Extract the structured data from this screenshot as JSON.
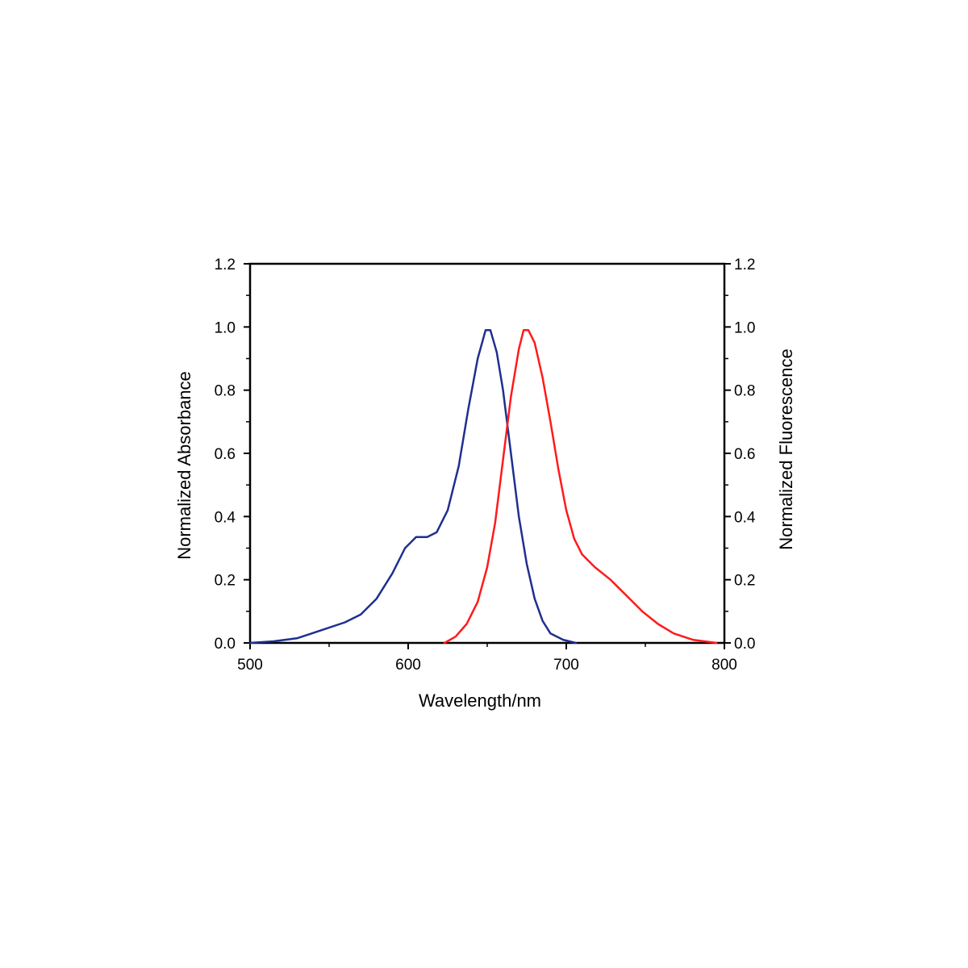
{
  "chart_data": {
    "type": "line",
    "xlabel": "Wavelength/nm",
    "ylabel_left": "Normalized Absorbance",
    "ylabel_right": "Normalized Fluorescence",
    "xlim": [
      500,
      800
    ],
    "ylim_left": [
      0.0,
      1.2
    ],
    "ylim_right": [
      0.0,
      1.2
    ],
    "x_ticks": [
      "500",
      "600",
      "700",
      "800"
    ],
    "y_ticks_left": [
      "0.0",
      "0.2",
      "0.4",
      "0.6",
      "0.8",
      "1.0",
      "1.2"
    ],
    "y_ticks_right": [
      "0.0",
      "0.2",
      "0.4",
      "0.6",
      "0.8",
      "1.0",
      "1.2"
    ],
    "grid": false,
    "series": [
      {
        "axis": "left",
        "color": "#1f2f8f",
        "points": [
          [
            500,
            0.0
          ],
          [
            515,
            0.005
          ],
          [
            530,
            0.015
          ],
          [
            545,
            0.04
          ],
          [
            560,
            0.065
          ],
          [
            570,
            0.09
          ],
          [
            580,
            0.14
          ],
          [
            590,
            0.22
          ],
          [
            598,
            0.3
          ],
          [
            605,
            0.335
          ],
          [
            612,
            0.335
          ],
          [
            618,
            0.35
          ],
          [
            625,
            0.42
          ],
          [
            632,
            0.56
          ],
          [
            638,
            0.74
          ],
          [
            644,
            0.9
          ],
          [
            649,
            0.99
          ],
          [
            652,
            0.99
          ],
          [
            656,
            0.92
          ],
          [
            660,
            0.8
          ],
          [
            665,
            0.6
          ],
          [
            670,
            0.4
          ],
          [
            675,
            0.25
          ],
          [
            680,
            0.14
          ],
          [
            685,
            0.07
          ],
          [
            690,
            0.03
          ],
          [
            698,
            0.01
          ],
          [
            706,
            0.0
          ]
        ]
      },
      {
        "axis": "right",
        "color": "#ff1a1a",
        "points": [
          [
            623,
            0.0
          ],
          [
            630,
            0.02
          ],
          [
            637,
            0.06
          ],
          [
            644,
            0.13
          ],
          [
            650,
            0.24
          ],
          [
            655,
            0.38
          ],
          [
            660,
            0.58
          ],
          [
            665,
            0.78
          ],
          [
            670,
            0.93
          ],
          [
            673,
            0.99
          ],
          [
            676,
            0.99
          ],
          [
            680,
            0.95
          ],
          [
            685,
            0.84
          ],
          [
            690,
            0.7
          ],
          [
            695,
            0.55
          ],
          [
            700,
            0.42
          ],
          [
            705,
            0.33
          ],
          [
            710,
            0.28
          ],
          [
            718,
            0.24
          ],
          [
            728,
            0.2
          ],
          [
            738,
            0.15
          ],
          [
            748,
            0.1
          ],
          [
            758,
            0.06
          ],
          [
            768,
            0.03
          ],
          [
            780,
            0.01
          ],
          [
            795,
            0.0
          ]
        ]
      }
    ]
  }
}
